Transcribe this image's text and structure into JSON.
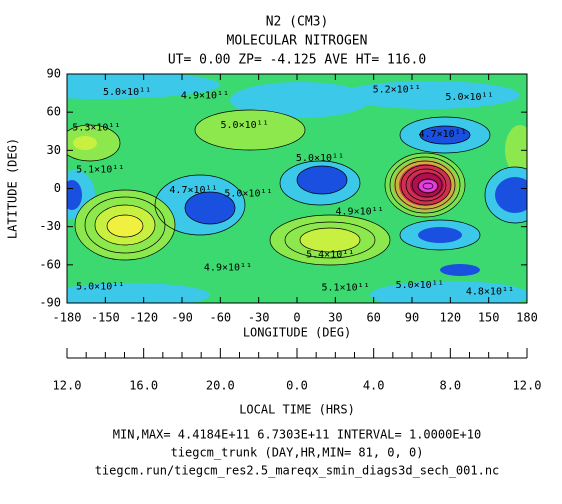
{
  "chart_data": {
    "type": "contour",
    "title": [
      "N2 (CM3)",
      "MOLECULAR NITROGEN",
      "UT= 0.00 ZP= -4.125 AVE HT= 116.0"
    ],
    "xlabel": "LONGITUDE (DEG)",
    "ylabel": "LATITUDE (DEG)",
    "xlim": [
      -180,
      180
    ],
    "ylim": [
      -90,
      90
    ],
    "xticks": [
      -180,
      -150,
      -120,
      -90,
      -60,
      -30,
      0,
      30,
      60,
      90,
      120,
      150,
      180
    ],
    "yticks": [
      -90,
      -60,
      -30,
      0,
      30,
      60,
      90
    ],
    "contour_labels": [
      {
        "x": -133,
        "y": 76,
        "label": "5.0×10¹¹"
      },
      {
        "x": -72,
        "y": 73,
        "label": "4.9×10¹¹"
      },
      {
        "x": 78,
        "y": 78,
        "label": "5.2×10¹¹"
      },
      {
        "x": 135,
        "y": 72,
        "label": "5.0×10¹¹"
      },
      {
        "x": -157,
        "y": 48,
        "label": "5.3×10¹¹"
      },
      {
        "x": -41,
        "y": 50,
        "label": "5.0×10¹¹"
      },
      {
        "x": 114,
        "y": 43,
        "label": "4.7×10¹¹"
      },
      {
        "x": -154,
        "y": 15,
        "label": "5.1×10¹¹"
      },
      {
        "x": 18,
        "y": 24,
        "label": "5.0×10¹¹"
      },
      {
        "x": -81,
        "y": -1,
        "label": "4.7×10¹¹"
      },
      {
        "x": -38,
        "y": -4,
        "label": "5.0×10¹¹"
      },
      {
        "x": 49,
        "y": -18,
        "label": "4.9×10¹¹"
      },
      {
        "x": 26,
        "y": -52,
        "label": "5.4×10¹¹"
      },
      {
        "x": -54,
        "y": -62,
        "label": "4.9×10¹¹"
      },
      {
        "x": -154,
        "y": -77,
        "label": "5.0×10¹¹"
      },
      {
        "x": 38,
        "y": -78,
        "label": "5.1×10¹¹"
      },
      {
        "x": 96,
        "y": -76,
        "label": "5.0×10¹¹"
      },
      {
        "x": 151,
        "y": -81,
        "label": "4.8×10¹¹"
      }
    ],
    "lt_label": "LOCAL TIME (HRS)",
    "lt_ticks": [
      {
        "value": -180,
        "label": "12.0"
      },
      {
        "value": -120,
        "label": "16.0"
      },
      {
        "value": -60,
        "label": "20.0"
      },
      {
        "value": 0,
        "label": "0.0"
      },
      {
        "value": 60,
        "label": "4.0"
      },
      {
        "value": 120,
        "label": "8.0"
      },
      {
        "value": 180,
        "label": "12.0"
      }
    ],
    "lt_minor_ticks": [
      -165,
      -150,
      -135,
      -105,
      -90,
      -75,
      -45,
      -30,
      -15,
      15,
      30,
      45,
      75,
      90,
      105,
      135,
      150,
      165
    ],
    "footer": [
      "MIN,MAX=  4.4184E+11  6.7303E+11 INTERVAL=  1.0000E+10",
      "tiegcm_trunk (DAY,HR,MIN= 81, 0, 0)",
      "tiegcm.run/tiegcm_res2.5_mareqx_smin_diags3d_sech_001.nc"
    ]
  }
}
